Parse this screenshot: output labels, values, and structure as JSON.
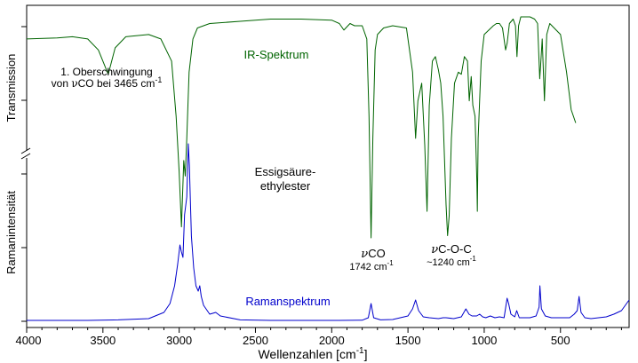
{
  "chart_data": {
    "type": "line",
    "xlabel": "Wellenzahlen [cm",
    "xlabel_sup": "-1",
    "xlabel_end": "]",
    "xlim": [
      4000,
      50
    ],
    "xticks": [
      4000,
      3500,
      3000,
      2500,
      2000,
      1500,
      1000,
      500
    ],
    "grid": false,
    "legend": "none",
    "ir": {
      "ylabel": "Transmission",
      "name": "IR-Spektrum",
      "color": "#006400",
      "points": [
        [
          4000,
          0.9
        ],
        [
          3800,
          0.905
        ],
        [
          3700,
          0.91
        ],
        [
          3600,
          0.9
        ],
        [
          3530,
          0.85
        ],
        [
          3465,
          0.74
        ],
        [
          3420,
          0.86
        ],
        [
          3350,
          0.91
        ],
        [
          3200,
          0.92
        ],
        [
          3120,
          0.9
        ],
        [
          3050,
          0.8
        ],
        [
          3020,
          0.55
        ],
        [
          3000,
          0.3
        ],
        [
          2985,
          0.05
        ],
        [
          2970,
          0.35
        ],
        [
          2960,
          0.28
        ],
        [
          2950,
          0.45
        ],
        [
          2935,
          0.75
        ],
        [
          2910,
          0.9
        ],
        [
          2880,
          0.95
        ],
        [
          2800,
          0.97
        ],
        [
          2600,
          0.98
        ],
        [
          2400,
          0.99
        ],
        [
          2200,
          0.99
        ],
        [
          2000,
          0.985
        ],
        [
          1950,
          0.97
        ],
        [
          1920,
          0.94
        ],
        [
          1880,
          0.97
        ],
        [
          1850,
          0.96
        ],
        [
          1800,
          0.96
        ],
        [
          1770,
          0.9
        ],
        [
          1755,
          0.55
        ],
        [
          1742,
          0.0
        ],
        [
          1730,
          0.45
        ],
        [
          1715,
          0.85
        ],
        [
          1700,
          0.92
        ],
        [
          1660,
          0.95
        ],
        [
          1600,
          0.96
        ],
        [
          1510,
          0.95
        ],
        [
          1470,
          0.75
        ],
        [
          1450,
          0.45
        ],
        [
          1435,
          0.62
        ],
        [
          1410,
          0.7
        ],
        [
          1390,
          0.42
        ],
        [
          1375,
          0.12
        ],
        [
          1360,
          0.6
        ],
        [
          1340,
          0.8
        ],
        [
          1320,
          0.82
        ],
        [
          1300,
          0.76
        ],
        [
          1285,
          0.7
        ],
        [
          1270,
          0.55
        ],
        [
          1250,
          0.15
        ],
        [
          1240,
          0.01
        ],
        [
          1230,
          0.1
        ],
        [
          1215,
          0.45
        ],
        [
          1195,
          0.7
        ],
        [
          1170,
          0.75
        ],
        [
          1150,
          0.74
        ],
        [
          1130,
          0.82
        ],
        [
          1110,
          0.8
        ],
        [
          1098,
          0.62
        ],
        [
          1085,
          0.73
        ],
        [
          1075,
          0.6
        ],
        [
          1060,
          0.55
        ],
        [
          1048,
          0.25
        ],
        [
          1045,
          0.12
        ],
        [
          1040,
          0.45
        ],
        [
          1020,
          0.8
        ],
        [
          1000,
          0.92
        ],
        [
          970,
          0.94
        ],
        [
          940,
          0.96
        ],
        [
          920,
          0.97
        ],
        [
          900,
          0.97
        ],
        [
          880,
          0.95
        ],
        [
          860,
          0.85
        ],
        [
          850,
          0.88
        ],
        [
          835,
          0.97
        ],
        [
          810,
          0.99
        ],
        [
          795,
          0.96
        ],
        [
          785,
          0.82
        ],
        [
          775,
          0.96
        ],
        [
          760,
          1.0
        ],
        [
          700,
          1.0
        ],
        [
          670,
          0.99
        ],
        [
          650,
          0.97
        ],
        [
          636,
          0.72
        ],
        [
          630,
          0.78
        ],
        [
          620,
          0.9
        ],
        [
          605,
          0.62
        ],
        [
          590,
          0.92
        ],
        [
          570,
          0.97
        ],
        [
          500,
          0.92
        ],
        [
          460,
          0.75
        ],
        [
          430,
          0.58
        ],
        [
          400,
          0.52
        ]
      ]
    },
    "raman": {
      "ylabel": "Ramanintensität",
      "name": "Ramanspektrum",
      "color": "#0000cc",
      "points": [
        [
          4000,
          0.005
        ],
        [
          3600,
          0.005
        ],
        [
          3400,
          0.008
        ],
        [
          3200,
          0.015
        ],
        [
          3100,
          0.05
        ],
        [
          3060,
          0.1
        ],
        [
          3030,
          0.2
        ],
        [
          3010,
          0.32
        ],
        [
          2995,
          0.43
        ],
        [
          2985,
          0.39
        ],
        [
          2975,
          0.36
        ],
        [
          2965,
          0.6
        ],
        [
          2950,
          0.7
        ],
        [
          2940,
          1.0
        ],
        [
          2933,
          0.88
        ],
        [
          2920,
          0.48
        ],
        [
          2905,
          0.3
        ],
        [
          2890,
          0.2
        ],
        [
          2875,
          0.17
        ],
        [
          2865,
          0.2
        ],
        [
          2855,
          0.14
        ],
        [
          2840,
          0.09
        ],
        [
          2800,
          0.04
        ],
        [
          2760,
          0.05
        ],
        [
          2730,
          0.03
        ],
        [
          2600,
          0.008
        ],
        [
          2400,
          0.005
        ],
        [
          2000,
          0.005
        ],
        [
          1800,
          0.006
        ],
        [
          1760,
          0.02
        ],
        [
          1742,
          0.1
        ],
        [
          1725,
          0.02
        ],
        [
          1680,
          0.008
        ],
        [
          1600,
          0.01
        ],
        [
          1500,
          0.03
        ],
        [
          1470,
          0.07
        ],
        [
          1450,
          0.12
        ],
        [
          1430,
          0.06
        ],
        [
          1400,
          0.025
        ],
        [
          1360,
          0.02
        ],
        [
          1300,
          0.015
        ],
        [
          1270,
          0.02
        ],
        [
          1250,
          0.02
        ],
        [
          1200,
          0.015
        ],
        [
          1150,
          0.025
        ],
        [
          1120,
          0.07
        ],
        [
          1100,
          0.04
        ],
        [
          1080,
          0.03
        ],
        [
          1050,
          0.03
        ],
        [
          1030,
          0.04
        ],
        [
          1010,
          0.025
        ],
        [
          990,
          0.02
        ],
        [
          960,
          0.03
        ],
        [
          930,
          0.02
        ],
        [
          900,
          0.025
        ],
        [
          870,
          0.02
        ],
        [
          850,
          0.13
        ],
        [
          840,
          0.1
        ],
        [
          825,
          0.04
        ],
        [
          800,
          0.025
        ],
        [
          787,
          0.06
        ],
        [
          770,
          0.02
        ],
        [
          700,
          0.02
        ],
        [
          660,
          0.03
        ],
        [
          640,
          0.08
        ],
        [
          635,
          0.2
        ],
        [
          625,
          0.07
        ],
        [
          600,
          0.03
        ],
        [
          560,
          0.02
        ],
        [
          500,
          0.02
        ],
        [
          440,
          0.02
        ],
        [
          410,
          0.04
        ],
        [
          390,
          0.06
        ],
        [
          378,
          0.14
        ],
        [
          365,
          0.05
        ],
        [
          340,
          0.02
        ],
        [
          300,
          0.015
        ],
        [
          250,
          0.02
        ],
        [
          200,
          0.025
        ],
        [
          150,
          0.04
        ],
        [
          100,
          0.06
        ],
        [
          50,
          0.12
        ]
      ]
    },
    "annotations": {
      "overtone_line1": "1. Oberschwingung",
      "overtone_line2_pre": "von ",
      "overtone_nu": "ν",
      "overtone_line2_mid": "CO bei 3465 cm",
      "overtone_sup": "-1",
      "compound_line1": "Essigsäure-",
      "compound_line2": "ethylester",
      "vco_nu": "ν",
      "vco_label": "CO",
      "vco_pos": "1742 cm",
      "vco_sup": "-1",
      "vcoc_nu": "ν",
      "vcoc_label": "C-O-C",
      "vcoc_pos": "~1240 cm",
      "vcoc_sup": "-1"
    }
  }
}
